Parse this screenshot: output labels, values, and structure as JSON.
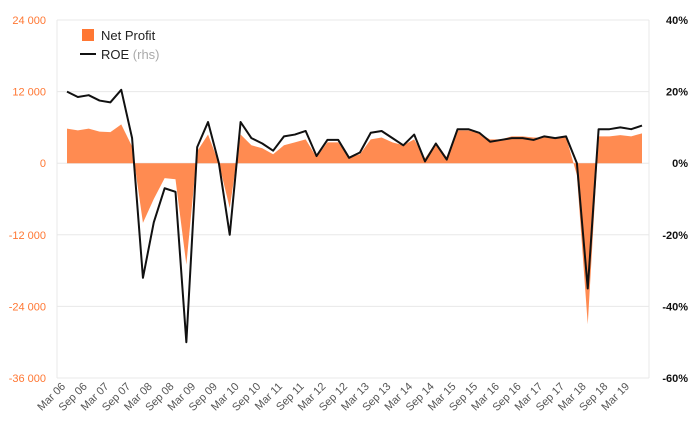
{
  "chart_data": {
    "type": "area",
    "colors": {
      "area": "#ff7733",
      "line": "#111111",
      "left_axis": "#ff7733",
      "right_axis": "#111111",
      "grid": "#e8e8e8"
    },
    "legend": {
      "placement": "top-left",
      "area_label": "Net Profit",
      "line_label": "ROE",
      "line_suffix": "(rhs)"
    },
    "left_axis": {
      "ylim": [
        -36000,
        24000
      ],
      "ticks": [
        "24 000",
        "12 000",
        "0",
        "-12 000",
        "-24 000",
        "-36 000"
      ],
      "tick_values": [
        24000,
        12000,
        0,
        -12000,
        -24000,
        -36000
      ]
    },
    "right_axis": {
      "ylim": [
        -0.6,
        0.4
      ],
      "ticks": [
        "40%",
        "20%",
        "0%",
        "-20%",
        "-40%",
        "-60%"
      ],
      "tick_values": [
        0.4,
        0.2,
        0,
        -0.2,
        -0.4,
        -0.6
      ]
    },
    "grid": true,
    "x_tick_labels": [
      "Mar 06",
      "Sep 06",
      "Mar 07",
      "Sep 07",
      "Mar 08",
      "Sep 08",
      "Mar 09",
      "Sep 09",
      "Mar 10",
      "Sep 10",
      "Mar 11",
      "Sep 11",
      "Mar 12",
      "Sep 12",
      "Mar 13",
      "Sep 13",
      "Mar 14",
      "Sep 14",
      "Mar 15",
      "Sep 15",
      "Mar 16",
      "Sep 16",
      "Mar 17",
      "Sep 17",
      "Mar 18",
      "Sep 18",
      "Mar 19"
    ],
    "series": [
      {
        "name": "Net Profit",
        "axis": "left",
        "values": [
          5800,
          5500,
          5800,
          5300,
          5200,
          6500,
          2800,
          -10000,
          -6000,
          -2500,
          -2700,
          -17000,
          2000,
          4800,
          0,
          -7500,
          4800,
          3000,
          2500,
          1500,
          3000,
          3500,
          4000,
          1000,
          3500,
          3500,
          1000,
          1500,
          4000,
          4300,
          3500,
          3000,
          4000,
          800,
          3500,
          1000,
          5500,
          5500,
          5000,
          4000,
          4000,
          4500,
          4500,
          4300,
          4300,
          4300,
          4400,
          -2000,
          -27000,
          4500,
          4500,
          4700,
          4500,
          5000
        ]
      },
      {
        "name": "ROE",
        "axis": "right",
        "values": [
          0.2,
          0.185,
          0.19,
          0.175,
          0.17,
          0.205,
          0.07,
          -0.32,
          -0.165,
          -0.07,
          -0.08,
          -0.5,
          0.045,
          0.115,
          0.0,
          -0.2,
          0.115,
          0.07,
          0.055,
          0.035,
          0.075,
          0.08,
          0.09,
          0.02,
          0.065,
          0.065,
          0.015,
          0.03,
          0.085,
          0.09,
          0.07,
          0.05,
          0.08,
          0.005,
          0.055,
          0.01,
          0.095,
          0.095,
          0.085,
          0.06,
          0.065,
          0.07,
          0.07,
          0.065,
          0.075,
          0.07,
          0.075,
          0.0,
          -0.35,
          0.095,
          0.095,
          0.1,
          0.095,
          0.105
        ]
      }
    ]
  }
}
